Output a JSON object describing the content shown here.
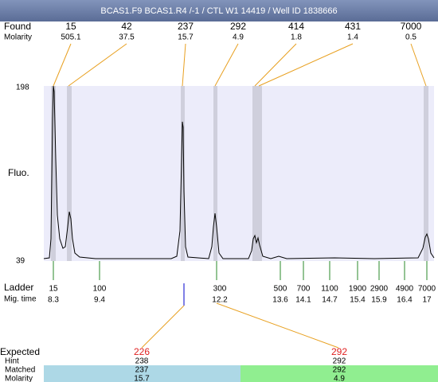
{
  "header": {
    "title": "BCAS1.F9  BCAS1.R4 /-1 / CTL W1 14419 / Well ID 1838666"
  },
  "found": {
    "label": "Found",
    "molarity_label": "Molarity",
    "peaks": [
      {
        "size": 15,
        "molarity": 505.1
      },
      {
        "size": 42,
        "molarity": 37.5
      },
      {
        "size": 237,
        "molarity": 15.7
      },
      {
        "size": 292,
        "molarity": 4.9
      },
      {
        "size": 414,
        "molarity": 1.8
      },
      {
        "size": 431,
        "molarity": 1.4
      },
      {
        "size": 7000,
        "molarity": 0.5
      }
    ]
  },
  "y_axis": {
    "label": "Fluo.",
    "max": 198,
    "min": 39
  },
  "ladder": {
    "label": "Ladder",
    "time_label": "Mig. time",
    "bands": [
      {
        "size": 15,
        "time": 8.3
      },
      {
        "size": 100,
        "time": 9.4
      },
      {
        "size": 300,
        "time": 12.2
      },
      {
        "size": 500,
        "time": 13.6
      },
      {
        "size": 700,
        "time": 14.1
      },
      {
        "size": 1100,
        "time": 14.7
      },
      {
        "size": 1900,
        "time": 15.4
      },
      {
        "size": 2900,
        "time": 15.9
      },
      {
        "size": 4900,
        "time": 16.4
      },
      {
        "size": 7000,
        "time": 17
      }
    ]
  },
  "expected": {
    "label": "Expected",
    "hint_label": "Hint",
    "matched_label": "Matched",
    "molarity_label": "Molarity",
    "rows": [
      {
        "expected": 226,
        "hint": 238,
        "matched": 237,
        "molarity": 15.7
      },
      {
        "expected": 292,
        "hint": 292,
        "matched": 292,
        "molarity": 4.9
      }
    ]
  }
}
